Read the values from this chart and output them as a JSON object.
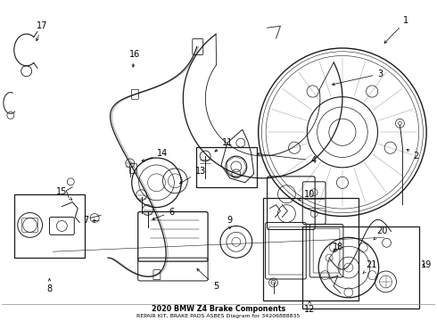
{
  "title": "2020 BMW Z4 Brake Components",
  "subtitle": "REPAIR KIT, BRAKE PADS ASBES Diagram for 34206888835",
  "bg_color": "#ffffff",
  "line_color": "#1a1a1a",
  "label_color": "#000000",
  "label_fontsize": 7.0,
  "figsize": [
    4.9,
    3.6
  ],
  "dpi": 100
}
